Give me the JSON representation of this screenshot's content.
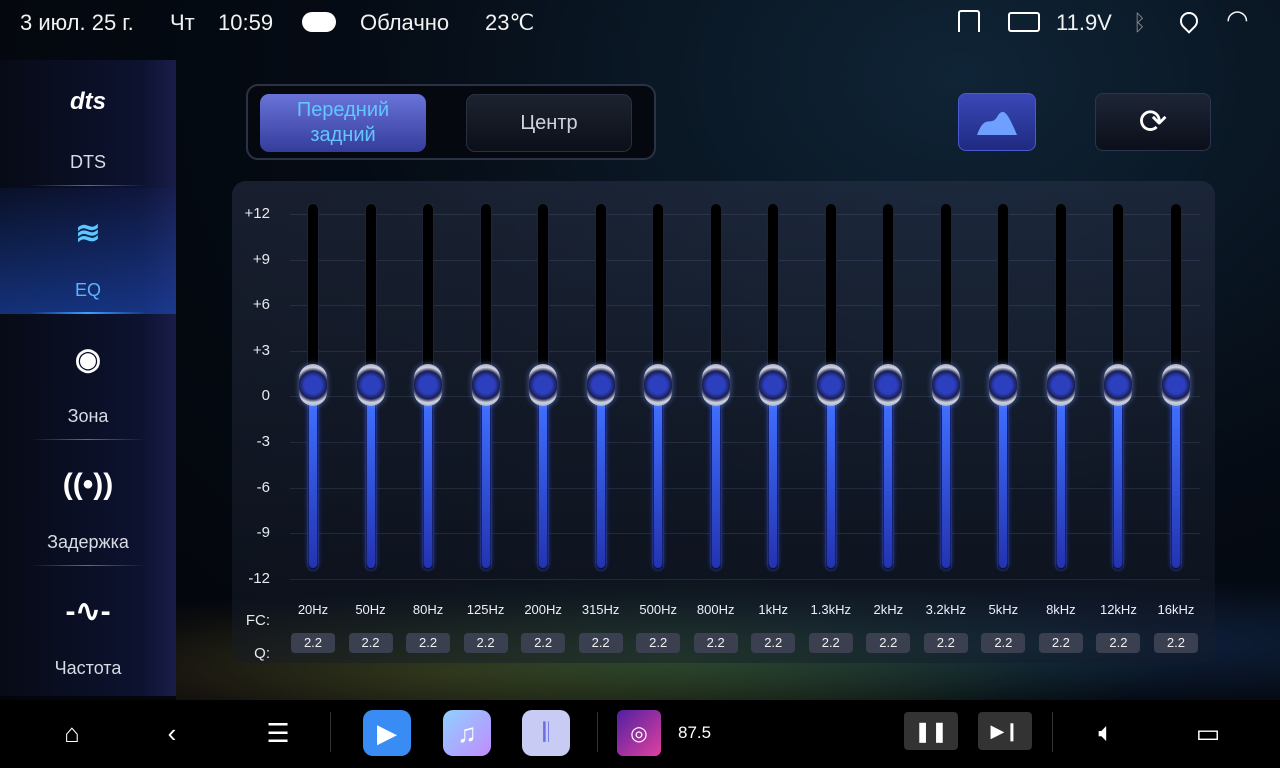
{
  "status": {
    "date": "3 июл. 25 г.",
    "weekday": "Чт",
    "time": "10:59",
    "weather_icon": "cloud-icon",
    "weather": "Облачно",
    "temperature": "23℃",
    "voltage": "11.9V"
  },
  "sidebar": {
    "items": [
      {
        "label": "DTS",
        "icon": "dts-logo"
      },
      {
        "label": "EQ",
        "icon": "eq-icon",
        "active": true
      },
      {
        "label": "Зона",
        "icon": "zone-icon"
      },
      {
        "label": "Задержка",
        "icon": "delay-icon"
      },
      {
        "label": "Частота",
        "icon": "frequency-icon"
      }
    ]
  },
  "tabs": {
    "front_rear": "Передний задний",
    "center": "Центр",
    "active": "front_rear"
  },
  "eq": {
    "y_labels": [
      "+12",
      "+9",
      "+6",
      "+3",
      "0",
      "-3",
      "-6",
      "-9",
      "-12"
    ],
    "fc_label": "FC:",
    "q_label": "Q:",
    "bands": [
      {
        "fc": "20Hz",
        "q": "2.2",
        "gain": 0
      },
      {
        "fc": "50Hz",
        "q": "2.2",
        "gain": 0
      },
      {
        "fc": "80Hz",
        "q": "2.2",
        "gain": 0
      },
      {
        "fc": "125Hz",
        "q": "2.2",
        "gain": 0
      },
      {
        "fc": "200Hz",
        "q": "2.2",
        "gain": 0
      },
      {
        "fc": "315Hz",
        "q": "2.2",
        "gain": 0
      },
      {
        "fc": "500Hz",
        "q": "2.2",
        "gain": 0
      },
      {
        "fc": "800Hz",
        "q": "2.2",
        "gain": 0
      },
      {
        "fc": "1kHz",
        "q": "2.2",
        "gain": 0
      },
      {
        "fc": "1.3kHz",
        "q": "2.2",
        "gain": 0
      },
      {
        "fc": "2kHz",
        "q": "2.2",
        "gain": 0
      },
      {
        "fc": "3.2kHz",
        "q": "2.2",
        "gain": 0
      },
      {
        "fc": "5kHz",
        "q": "2.2",
        "gain": 0
      },
      {
        "fc": "8kHz",
        "q": "2.2",
        "gain": 0
      },
      {
        "fc": "12kHz",
        "q": "2.2",
        "gain": 0
      },
      {
        "fc": "16kHz",
        "q": "2.2",
        "gain": 0
      }
    ]
  },
  "taskbar": {
    "radio_frequency": "87.5"
  },
  "colors": {
    "accent": "#3aa0ff",
    "slider_fill": "#3050ff"
  }
}
